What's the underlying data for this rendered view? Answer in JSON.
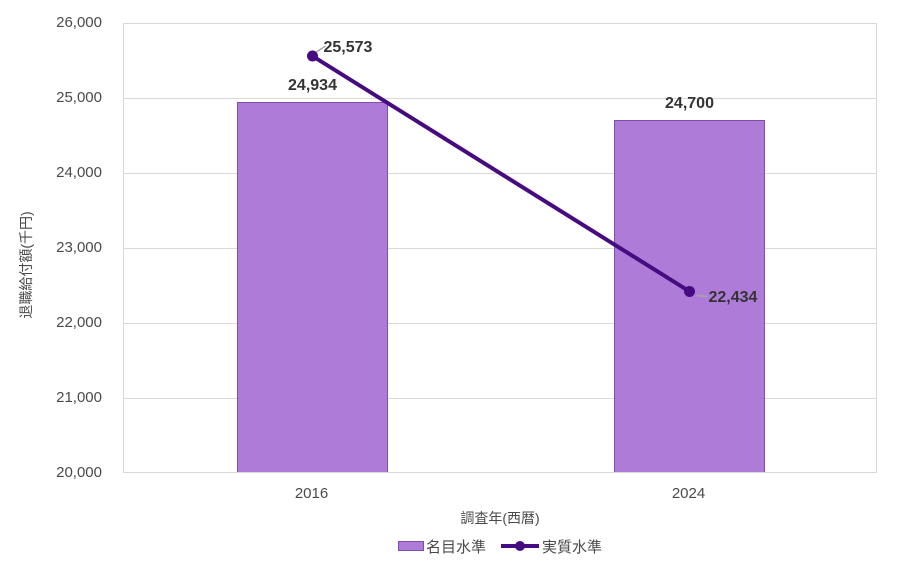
{
  "chart_data": {
    "type": "bar",
    "subtype": "combo-bar-line",
    "title": "",
    "categories": [
      "2016",
      "2024"
    ],
    "series": [
      {
        "name": "名目水準",
        "render": "bar",
        "values": [
          24934,
          24700
        ],
        "labels": [
          "24,934",
          "24,700"
        ]
      },
      {
        "name": "実質水準",
        "render": "line",
        "values": [
          25573,
          22434
        ],
        "labels": [
          "25,573",
          "22,434"
        ]
      }
    ],
    "xlabel": "調査年(西暦)",
    "ylabel": "退職給付額(千円)",
    "ylim": [
      20000,
      26000
    ],
    "ytick_step": 1000,
    "y_ticks": [
      "26,000",
      "25,000",
      "24,000",
      "23,000",
      "22,000",
      "21,000",
      "20,000"
    ],
    "grid": "horizontal",
    "legend_position": "bottom",
    "colors": {
      "bar_fill": "#AE7CD8",
      "bar_border": "#7D4FA8",
      "line": "#470B81",
      "grid": "#D9D9D9",
      "text_secondary": "#4A4A4A",
      "label_text": "#333333",
      "leader": "#A6A6A6"
    }
  }
}
